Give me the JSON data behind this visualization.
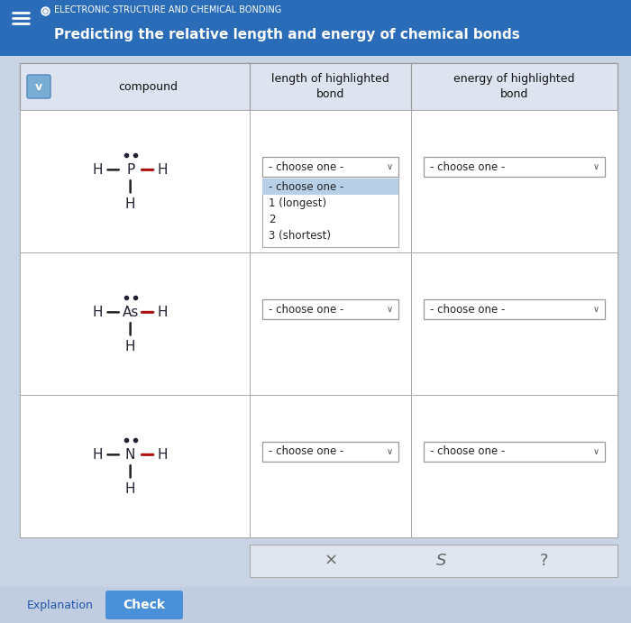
{
  "header_bg": "#2b6cb8",
  "page_bg": "#c8d4e4",
  "table_bg": "#e8eaf0",
  "cell_bg": "#f2f3f5",
  "header_small_text": "ELECTRONIC STRUCTURE AND CHEMICAL BONDING",
  "header_title": "Predicting the relative length and energy of chemical bonds",
  "col_headers": [
    "compound",
    "length of highlighted\nbond",
    "energy of highlighted\nbond"
  ],
  "compounds": [
    "P",
    "As",
    "N"
  ],
  "dropdown_text": "- choose one -",
  "dropdown_items": [
    "- choose one -",
    "1 (longest)",
    "2",
    "3 (shortest)"
  ],
  "explanation_text": "Explanation",
  "check_text": "Check",
  "check_btn_color": "#4a90d9",
  "bond_red": "#aa1111",
  "bond_black": "#222222",
  "bottom_box_bg": "#dde3ef",
  "chevron_bg": "#7aadd4",
  "chevron_border": "#5588bb"
}
